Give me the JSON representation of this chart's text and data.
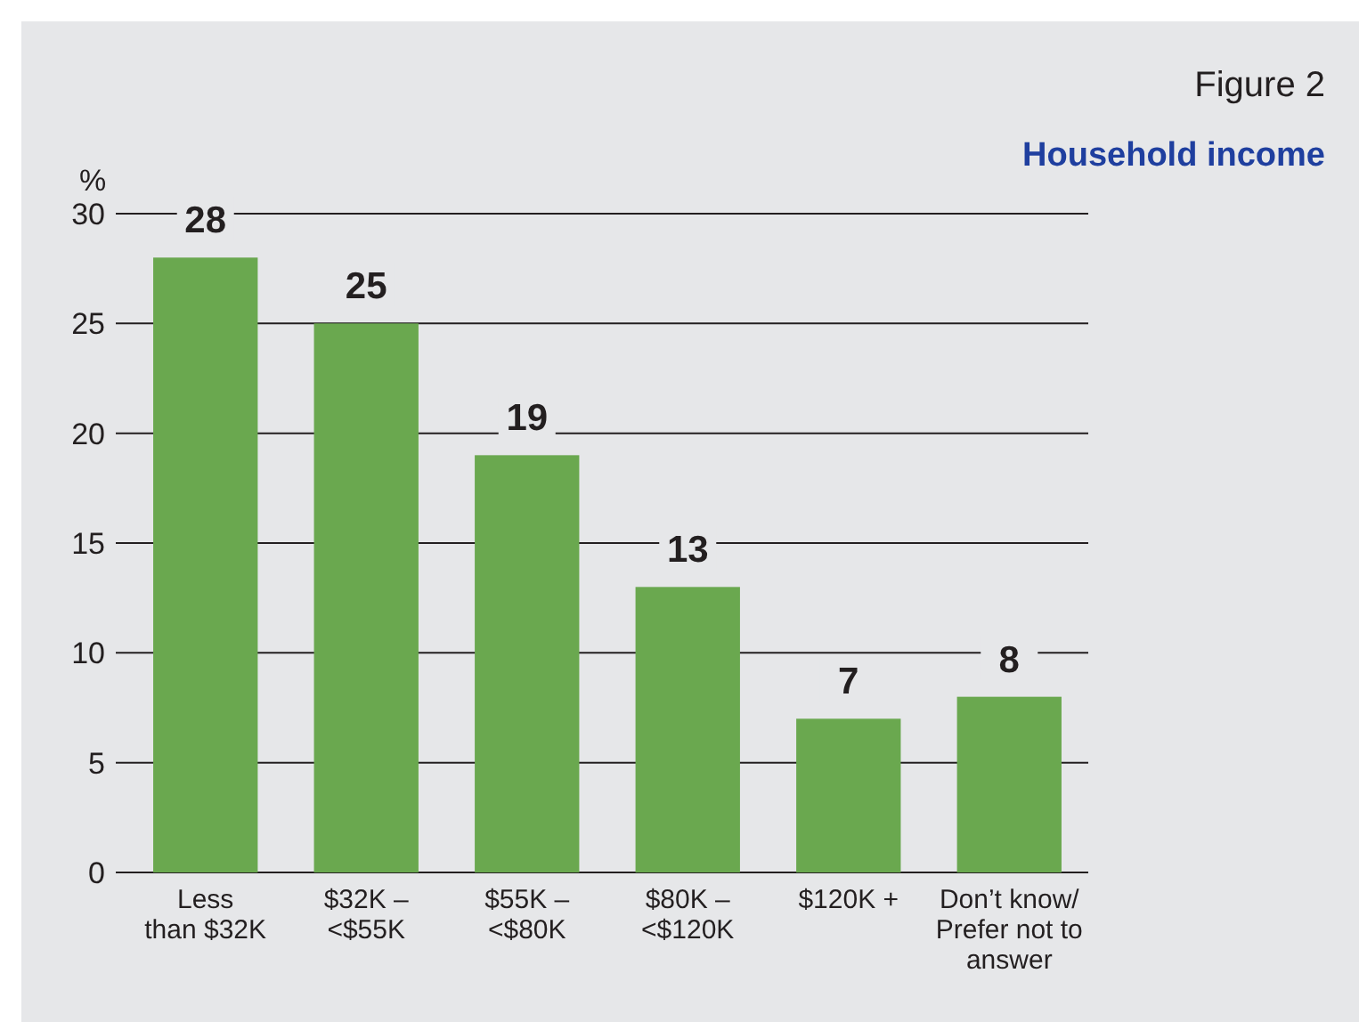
{
  "chart_data": {
    "type": "bar",
    "title": "Figure 2",
    "subtitle": "Household income",
    "ylabel": "%",
    "categories": [
      "Less\nthan $32K",
      "$32K –\n<$55K",
      "$55K –\n<$80K",
      "$80K –\n<$120K",
      "$120K +",
      "Don’t know/\nPrefer not to\nanswer"
    ],
    "values": [
      28,
      25,
      19,
      13,
      7,
      8
    ],
    "color": "#6aa84f",
    "ylim": [
      0,
      30
    ],
    "yticks": [
      0,
      5,
      10,
      15,
      20,
      25,
      30
    ],
    "grid": "y",
    "data_labels": true
  }
}
